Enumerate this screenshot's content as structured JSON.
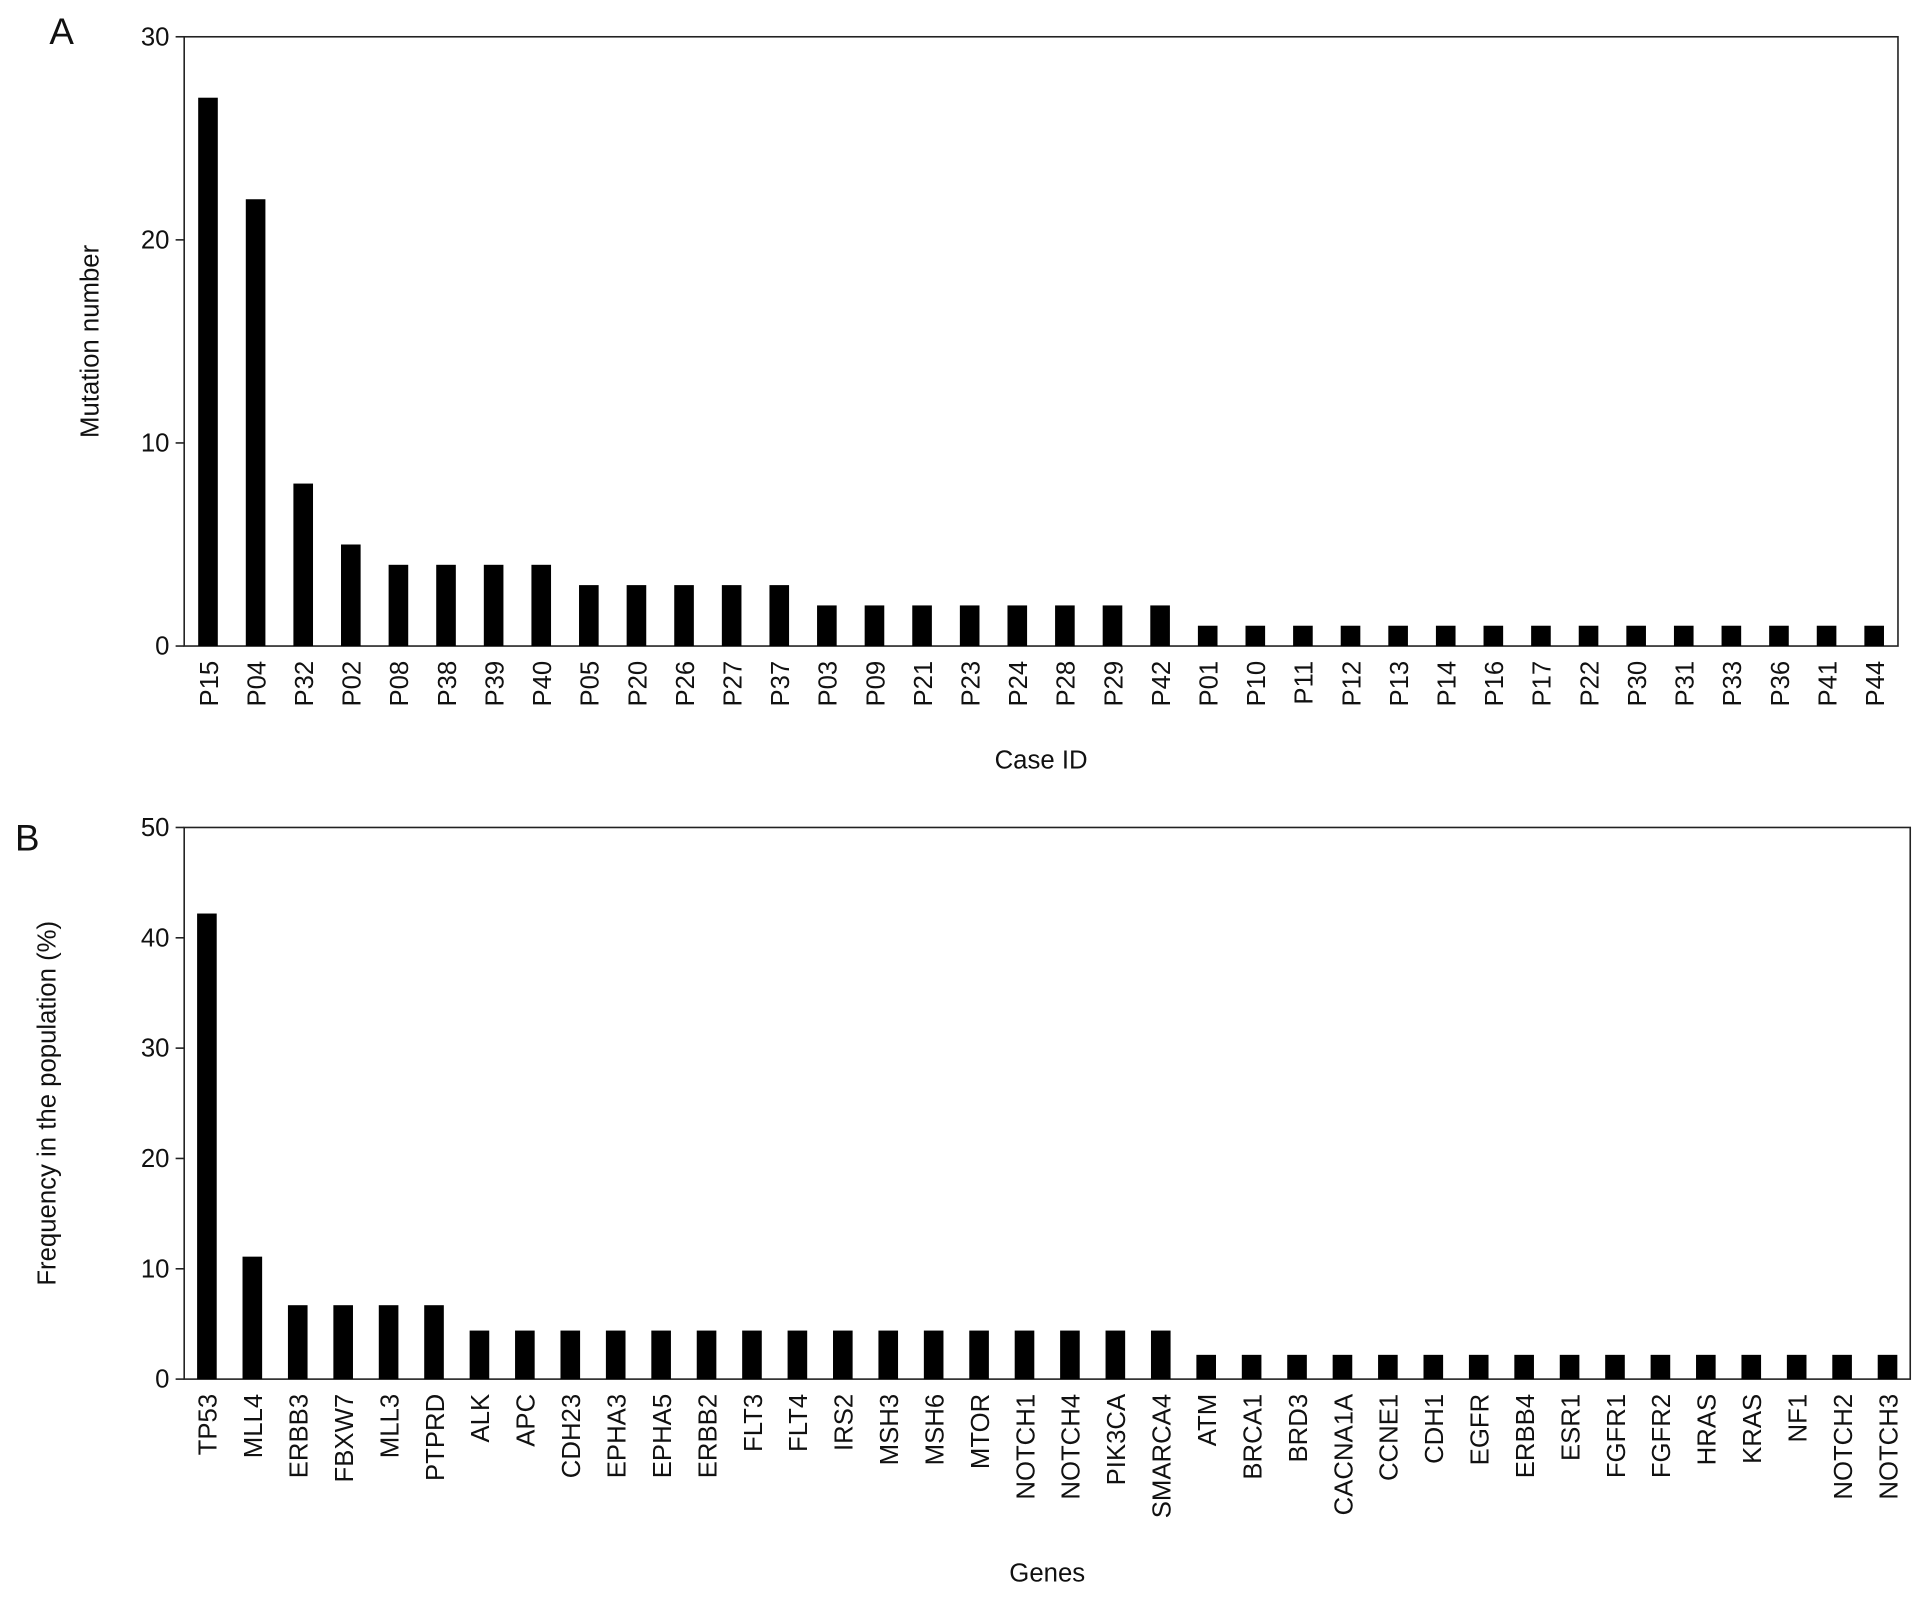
{
  "chart_data": [
    {
      "type": "bar",
      "panel": "A",
      "y_label": "Mutation number",
      "x_label": "Case ID",
      "categories": [
        "P15",
        "P04",
        "P32",
        "P02",
        "P08",
        "P38",
        "P39",
        "P40",
        "P05",
        "P20",
        "P26",
        "P27",
        "P37",
        "P03",
        "P09",
        "P21",
        "P23",
        "P24",
        "P28",
        "P29",
        "P42",
        "P01",
        "P10",
        "P11",
        "P12",
        "P13",
        "P14",
        "P16",
        "P17",
        "P22",
        "P30",
        "P31",
        "P33",
        "P36",
        "P41",
        "P44"
      ],
      "values": [
        27,
        22,
        8,
        5,
        4,
        4,
        4,
        4,
        3,
        3,
        3,
        3,
        3,
        2,
        2,
        2,
        2,
        2,
        2,
        2,
        2,
        1,
        1,
        1,
        1,
        1,
        1,
        1,
        1,
        1,
        1,
        1,
        1,
        1,
        1,
        1
      ],
      "color": "#000000",
      "ylim": [
        0,
        30
      ],
      "yticks": [
        0,
        10,
        20,
        30
      ],
      "grid": false
    },
    {
      "type": "bar",
      "panel": "B",
      "y_label": "Frequency in the population (%)",
      "x_label": "Genes",
      "categories": [
        "TP53",
        "MLL4",
        "ERBB3",
        "FBXW7",
        "MLL3",
        "PTPRD",
        "ALK",
        "APC",
        "CDH23",
        "EPHA3",
        "EPHA5",
        "ERBB2",
        "FLT3",
        "FLT4",
        "IRS2",
        "MSH3",
        "MSH6",
        "MTOR",
        "NOTCH1",
        "NOTCH4",
        "PIK3CA",
        "SMARCA4",
        "ATM",
        "BRCA1",
        "BRD3",
        "CACNA1A",
        "CCNE1",
        "CDH1",
        "EGFR",
        "ERBB4",
        "ESR1",
        "FGFR1",
        "FGFR2",
        "HRAS",
        "KRAS",
        "NF1",
        "NOTCH2",
        "NOTCH3"
      ],
      "values": [
        42.2,
        11.1,
        6.7,
        6.7,
        6.7,
        6.7,
        4.4,
        4.4,
        4.4,
        4.4,
        4.4,
        4.4,
        4.4,
        4.4,
        4.4,
        4.4,
        4.4,
        4.4,
        4.4,
        4.4,
        4.4,
        4.4,
        2.2,
        2.2,
        2.2,
        2.2,
        2.2,
        2.2,
        2.2,
        2.2,
        2.2,
        2.2,
        2.2,
        2.2,
        2.2,
        2.2,
        2.2,
        2.2
      ],
      "color": "#000000",
      "ylim": [
        0,
        50
      ],
      "yticks": [
        0,
        10,
        20,
        30,
        40,
        50
      ],
      "grid": false
    }
  ]
}
